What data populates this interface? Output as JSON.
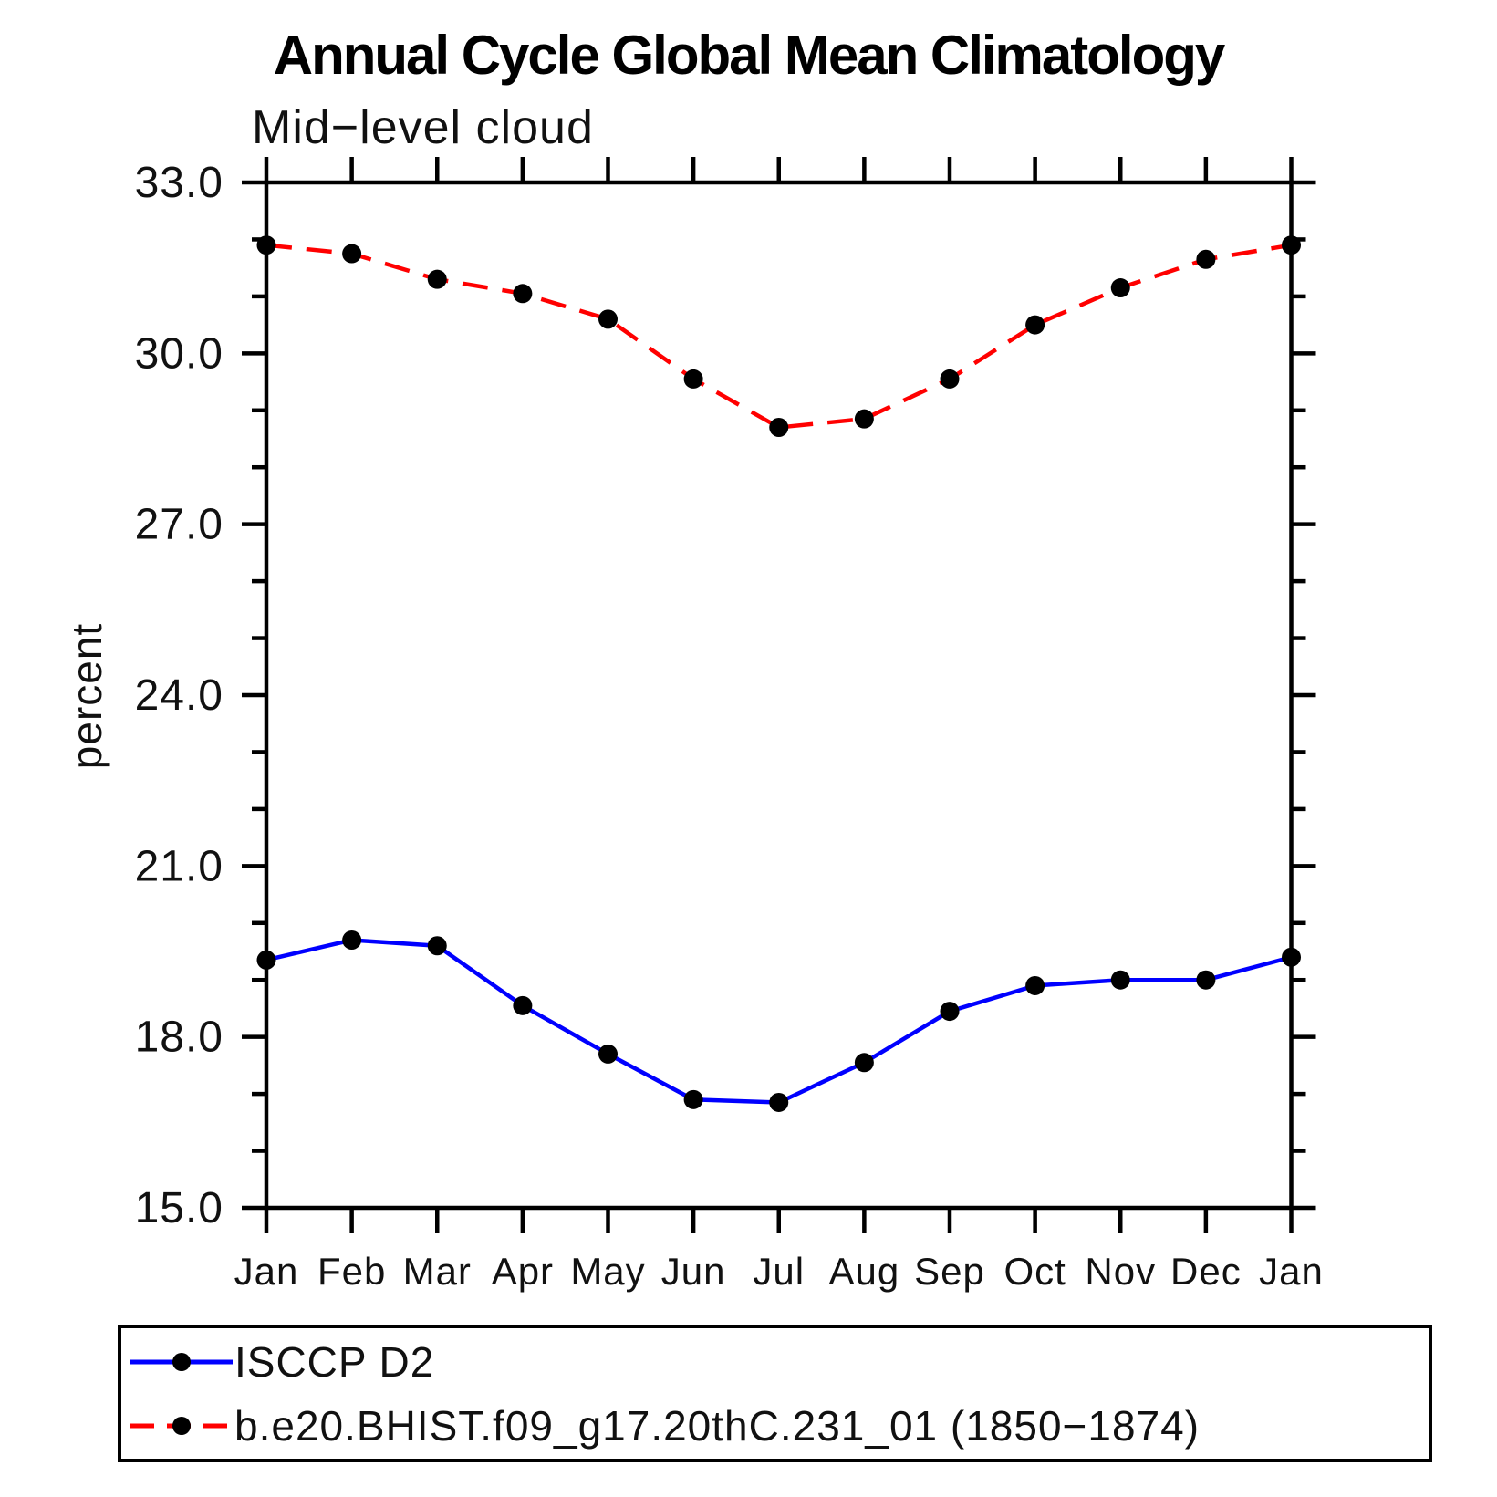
{
  "title": "Annual Cycle Global Mean Climatology",
  "subtitle": "Mid−level cloud",
  "ylabel": "percent",
  "legend": {
    "entries": [
      {
        "label": "ISCCP D2",
        "color": "#0000ff",
        "style": "solid",
        "marker": "filled-circle"
      },
      {
        "label": "b.e20.BHIST.f09_g17.20thC.231_01 (1850−1874)",
        "color": "#ff0000",
        "style": "dashed",
        "marker": "filled-circle"
      }
    ]
  },
  "chart_data": {
    "type": "line",
    "title": "Annual Cycle Global Mean Climatology",
    "subtitle": "Mid−level cloud",
    "xlabel": "",
    "ylabel": "percent",
    "categories": [
      "Jan",
      "Feb",
      "Mar",
      "Apr",
      "May",
      "Jun",
      "Jul",
      "Aug",
      "Sep",
      "Oct",
      "Nov",
      "Dec",
      "Jan"
    ],
    "series": [
      {
        "name": "ISCCP D2",
        "color": "#0000ff",
        "line_style": "solid",
        "marker": "filled-circle",
        "values": [
          19.35,
          19.7,
          19.6,
          18.55,
          17.7,
          16.9,
          16.85,
          17.55,
          18.45,
          18.9,
          19.0,
          19.0,
          19.4
        ]
      },
      {
        "name": "b.e20.BHIST.f09_g17.20thC.231_01 (1850−1874)",
        "color": "#ff0000",
        "line_style": "dashed",
        "marker": "filled-circle",
        "values": [
          31.9,
          31.75,
          31.3,
          31.05,
          30.6,
          29.55,
          28.7,
          28.85,
          29.55,
          30.5,
          31.15,
          31.65,
          31.9
        ]
      }
    ],
    "ylim": [
      15.0,
      33.0
    ],
    "y_major_ticks": [
      15.0,
      18.0,
      21.0,
      24.0,
      27.0,
      30.0,
      33.0
    ],
    "y_major_tick_labels": [
      "15.0",
      "18.0",
      "21.0",
      "24.0",
      "27.0",
      "30.0",
      "33.0"
    ],
    "y_minor_tick_step": 1.0,
    "grid": false,
    "legend_position": "bottom",
    "marker_color": "#000000",
    "axis_color": "#000000"
  }
}
